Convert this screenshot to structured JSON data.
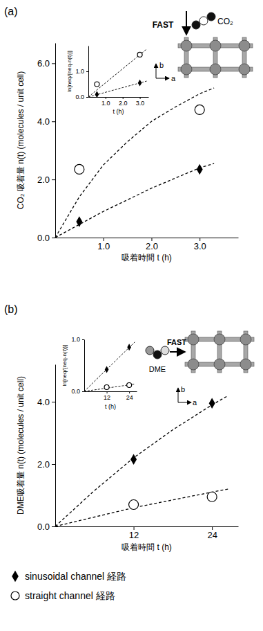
{
  "chart_data": [
    {
      "type": "scatter",
      "title": "(a)",
      "annotations": [
        "FAST",
        "CO₂",
        "b",
        "a"
      ],
      "xlabel": "吸着時間 t (h)",
      "ylabel": "CO₂ 吸着量 n(t)  (molecules / unit cell)",
      "xlim": [
        0,
        3.8
      ],
      "ylim": [
        0,
        6.7
      ],
      "xticks": [
        {
          "value": 1,
          "label": "1.0"
        },
        {
          "value": 2,
          "label": "2.0"
        },
        {
          "value": 3,
          "label": "3.0"
        }
      ],
      "yticks": [
        {
          "value": 0,
          "label": "0.0"
        },
        {
          "value": 2,
          "label": "2.0"
        },
        {
          "value": 4,
          "label": "4.0"
        },
        {
          "value": 6,
          "label": "6.0"
        }
      ],
      "series": [
        {
          "type": "scatter",
          "marker": "diamond",
          "color": "#000000",
          "x": [
            0.5,
            3.0
          ],
          "values": [
            0.55,
            2.35
          ]
        },
        {
          "type": "scatter",
          "marker": "open_circle",
          "color": "#000000",
          "x": [
            0.5,
            3.0
          ],
          "values": [
            2.35,
            4.4
          ]
        },
        {
          "type": "line",
          "line_style": "dashed",
          "color": "#000000",
          "x": [
            0,
            0.5,
            1,
            1.5,
            2,
            2.5,
            3,
            3.3
          ],
          "values": [
            0,
            0.45,
            0.9,
            1.3,
            1.7,
            2.05,
            2.4,
            2.55
          ]
        },
        {
          "type": "line",
          "line_style": "dashed",
          "color": "#000000",
          "x": [
            0,
            0.5,
            1,
            1.5,
            2,
            2.5,
            3,
            3.3
          ],
          "values": [
            0,
            1.4,
            2.5,
            3.3,
            4.0,
            4.5,
            4.95,
            5.15
          ]
        }
      ]
    },
    {
      "type": "scatter",
      "xlabel": "t (h)",
      "ylabel": "ln[neq/{neq-n(t)}]",
      "xlim": [
        0,
        3.5
      ],
      "ylim": [
        0,
        2.0
      ],
      "xticks": [
        {
          "value": 1,
          "label": "1.0"
        },
        {
          "value": 2,
          "label": "2.0"
        },
        {
          "value": 3,
          "label": "3.0"
        }
      ],
      "yticks": [
        {
          "value": 0,
          "label": "0.0"
        },
        {
          "value": 1,
          "label": "1.0"
        }
      ],
      "series": [
        {
          "type": "scatter",
          "marker": "diamond",
          "color": "#000000",
          "x": [
            0.5,
            3.0
          ],
          "values": [
            0.1,
            0.55
          ]
        },
        {
          "type": "scatter",
          "marker": "open_circle",
          "color": "#000000",
          "x": [
            0.5,
            3.0
          ],
          "values": [
            0.5,
            1.65
          ]
        },
        {
          "type": "line",
          "line_style": "dashed",
          "color": "#000000",
          "x": [
            0,
            3.4
          ],
          "values": [
            0,
            0.62
          ]
        },
        {
          "type": "line",
          "line_style": "dashed",
          "color": "#000000",
          "x": [
            0,
            3.4
          ],
          "values": [
            0,
            1.87
          ]
        }
      ]
    },
    {
      "type": "scatter",
      "title": "(b)",
      "annotations": [
        "FAST",
        "DME",
        "b",
        "a"
      ],
      "xlabel": "吸着時間 t (h)",
      "ylabel": "DME吸着量 n(t)  (molecules / unit cell)",
      "xlim": [
        0,
        28
      ],
      "ylim": [
        0,
        5.2
      ],
      "xticks": [
        12,
        24
      ],
      "yticks": [
        {
          "value": 0,
          "label": "0.0"
        },
        {
          "value": 2,
          "label": "2.0"
        },
        {
          "value": 4,
          "label": "4.0"
        }
      ],
      "legend": "bottom",
      "series": [
        {
          "name": "sinusoidal channel 経路",
          "type": "scatter",
          "marker": "diamond",
          "color": "#000000",
          "x": [
            12,
            24
          ],
          "values": [
            2.15,
            3.95
          ]
        },
        {
          "name": "straight channel 経路",
          "type": "scatter",
          "marker": "open_circle",
          "color": "#000000",
          "x": [
            12,
            24
          ],
          "values": [
            0.7,
            0.95
          ]
        },
        {
          "type": "line",
          "line_style": "dashed",
          "color": "#000000",
          "x": [
            0,
            6,
            12,
            18,
            24,
            26.5
          ],
          "values": [
            0,
            1.15,
            2.2,
            3.1,
            3.9,
            4.2
          ]
        },
        {
          "type": "line",
          "line_style": "dashed",
          "color": "#000000",
          "x": [
            0,
            6,
            12,
            18,
            24,
            26.5
          ],
          "values": [
            0,
            0.3,
            0.6,
            0.85,
            1.1,
            1.2
          ]
        }
      ]
    },
    {
      "type": "scatter",
      "xlabel": "t (h)",
      "ylabel": "ln[neq/{neq-n(t)}]",
      "xlim": [
        0,
        28
      ],
      "ylim": [
        0,
        1.0
      ],
      "xticks": [
        12,
        24
      ],
      "yticks": [
        {
          "value": 0,
          "label": "0.0"
        },
        {
          "value": 1,
          "label": "1.0"
        }
      ],
      "series": [
        {
          "type": "scatter",
          "marker": "diamond",
          "color": "#000000",
          "x": [
            12,
            24
          ],
          "values": [
            0.42,
            0.85
          ]
        },
        {
          "type": "scatter",
          "marker": "open_circle",
          "color": "#000000",
          "x": [
            12,
            24
          ],
          "values": [
            0.08,
            0.12
          ]
        },
        {
          "type": "line",
          "line_style": "dashed",
          "color": "#000000",
          "x": [
            0,
            27
          ],
          "values": [
            0,
            0.95
          ]
        },
        {
          "type": "line",
          "line_style": "dashed",
          "color": "#000000",
          "x": [
            0,
            27
          ],
          "values": [
            0,
            0.14
          ]
        }
      ]
    }
  ]
}
